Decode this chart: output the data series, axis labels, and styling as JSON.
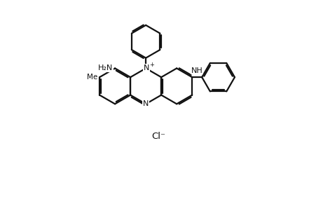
{
  "bg": "#ffffff",
  "line_color": "#111111",
  "lw": 1.6,
  "dbo": 0.055,
  "figsize": [
    4.41,
    2.81
  ],
  "dpi": 100,
  "xlim": [
    -0.5,
    8.8
  ],
  "ylim": [
    -1.8,
    6.0
  ]
}
